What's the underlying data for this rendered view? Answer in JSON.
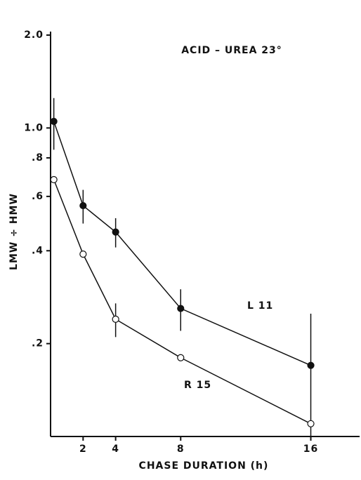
{
  "chart_data": {
    "type": "line",
    "annotation": "ACID – UREA   23°",
    "x_label": "CHASE DURATION (h)",
    "y_label": "LMW ÷ HMW",
    "log_y": true,
    "xlim": [
      0,
      19
    ],
    "xticks": [
      2,
      4,
      8,
      16
    ],
    "ylim": [
      0.1,
      2.0
    ],
    "yticks": [
      {
        "value": 2.0,
        "label": "2.0"
      },
      {
        "value": 1.0,
        "label": "1.0"
      },
      {
        "value": 0.8,
        "label": ".8"
      },
      {
        "value": 0.6,
        "label": ".6"
      },
      {
        "value": 0.4,
        "label": ".4"
      },
      {
        "value": 0.2,
        "label": ".2"
      }
    ],
    "x": [
      0.2,
      2,
      4,
      8,
      16
    ],
    "series": [
      {
        "name": "L 11",
        "color": "#111111",
        "filled": true,
        "values": [
          1.05,
          0.56,
          0.46,
          0.26,
          0.17
        ],
        "errors": [
          0.2,
          0.07,
          0.05,
          0.04,
          0.08
        ]
      },
      {
        "name": "R 15",
        "color": "#111111",
        "filled": false,
        "values": [
          0.68,
          0.39,
          0.24,
          0.18,
          0.11
        ],
        "errors": [
          null,
          null,
          0.03,
          null,
          null
        ]
      }
    ]
  }
}
